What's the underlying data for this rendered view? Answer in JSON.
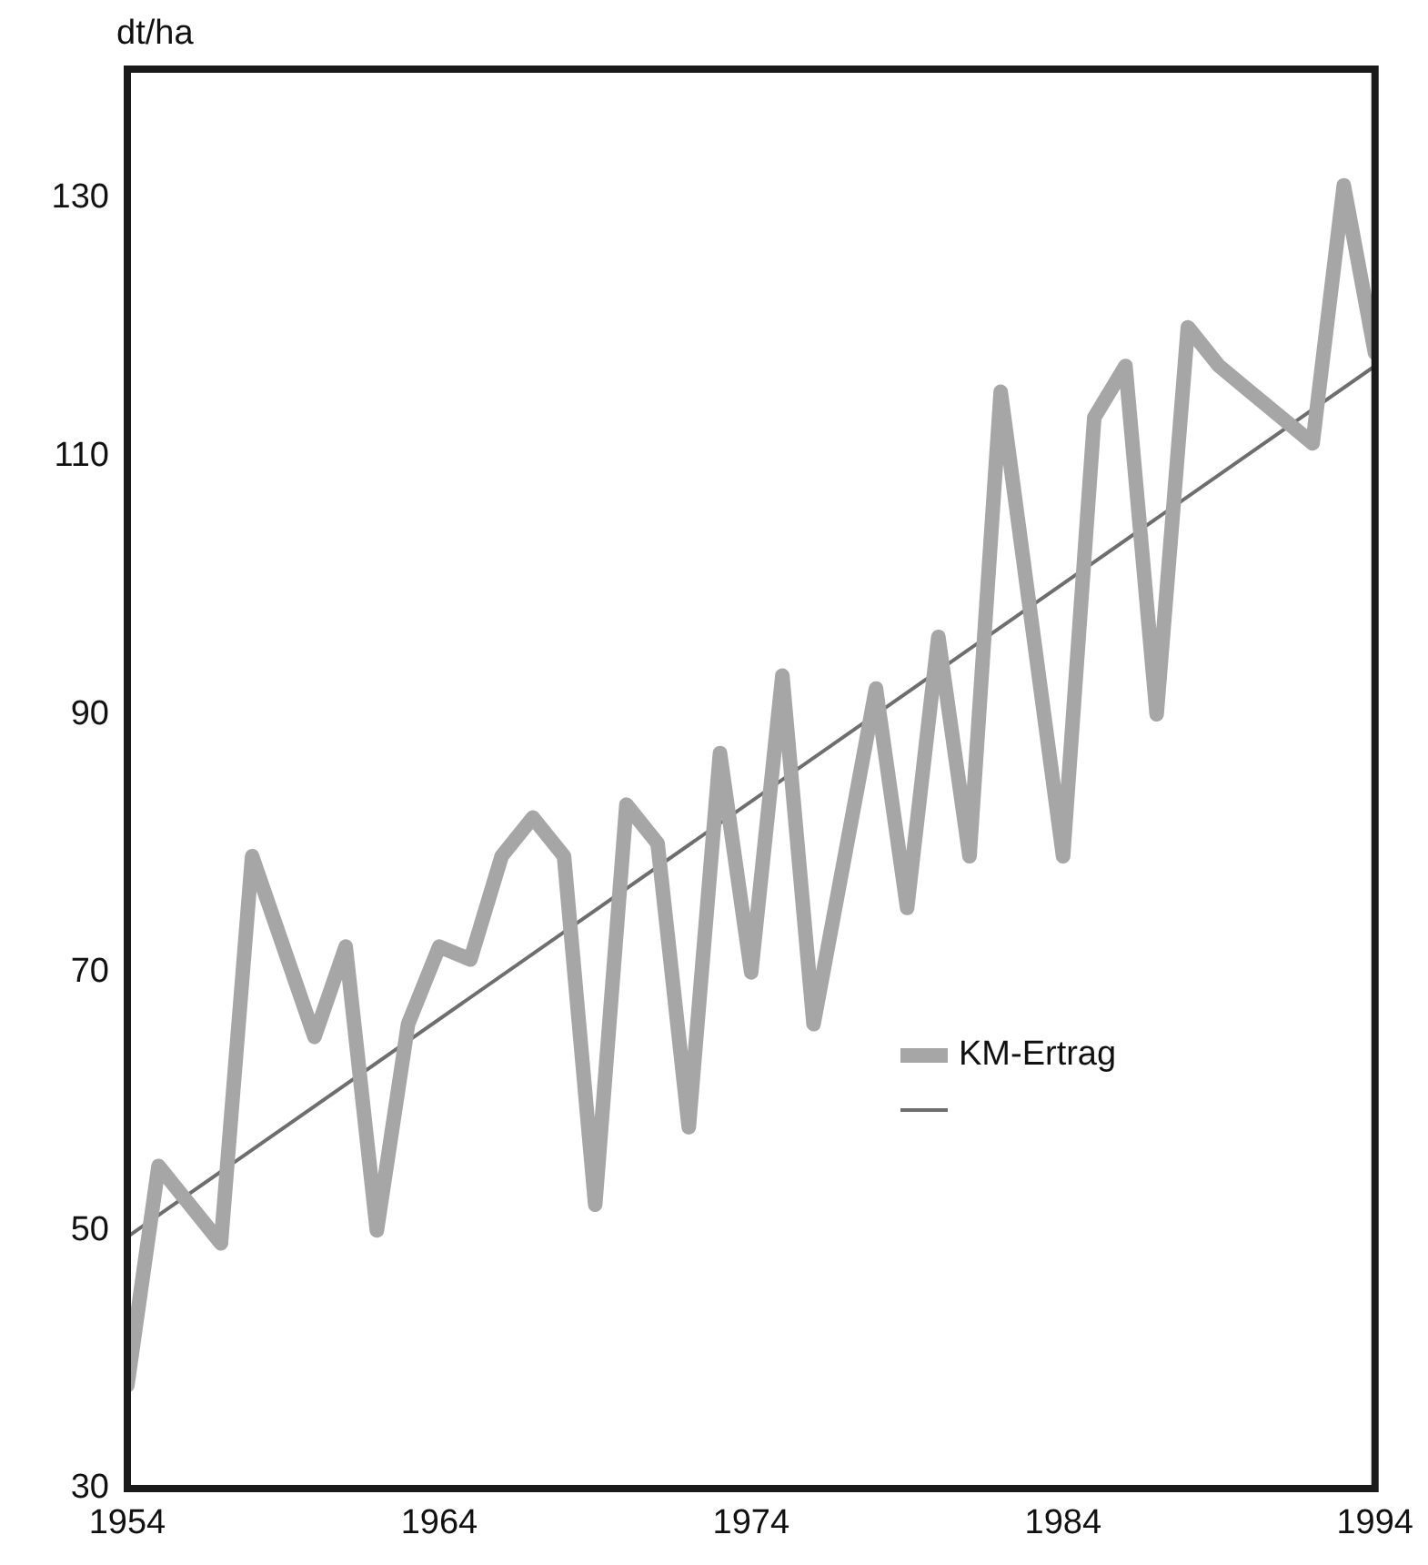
{
  "chart_data": {
    "type": "line",
    "ylabel": "dt/ha",
    "x": [
      1954,
      1955,
      1956,
      1957,
      1958,
      1959,
      1960,
      1961,
      1962,
      1963,
      1964,
      1965,
      1966,
      1967,
      1968,
      1969,
      1970,
      1971,
      1972,
      1973,
      1974,
      1975,
      1976,
      1977,
      1978,
      1979,
      1980,
      1981,
      1982,
      1983,
      1984,
      1985,
      1986,
      1987,
      1988,
      1989,
      1990,
      1991,
      1992,
      1993,
      1994
    ],
    "series": [
      {
        "name": "KM-Ertrag",
        "color": "#a6a6a6",
        "values": [
          38,
          55,
          52,
          49,
          79,
          72,
          65,
          72,
          50,
          66,
          72,
          71,
          79,
          82,
          79,
          52,
          83,
          80,
          58,
          87,
          70,
          93,
          66,
          79,
          92,
          75,
          96,
          79,
          115,
          97,
          79,
          113,
          117,
          90,
          120,
          117,
          115,
          113,
          111,
          131,
          118
        ]
      },
      {
        "type": "line",
        "color": "#6e6e6e",
        "x": [
          1954,
          1994
        ],
        "values": [
          49.5,
          117
        ]
      }
    ],
    "xlim": [
      1954,
      1994
    ],
    "xticks": [
      1954,
      1964,
      1974,
      1984,
      1994
    ],
    "ylim": [
      30,
      140
    ],
    "yticks": [
      30,
      50,
      70,
      90,
      110,
      130
    ],
    "grid": false,
    "legend": "right",
    "marker": "none"
  }
}
